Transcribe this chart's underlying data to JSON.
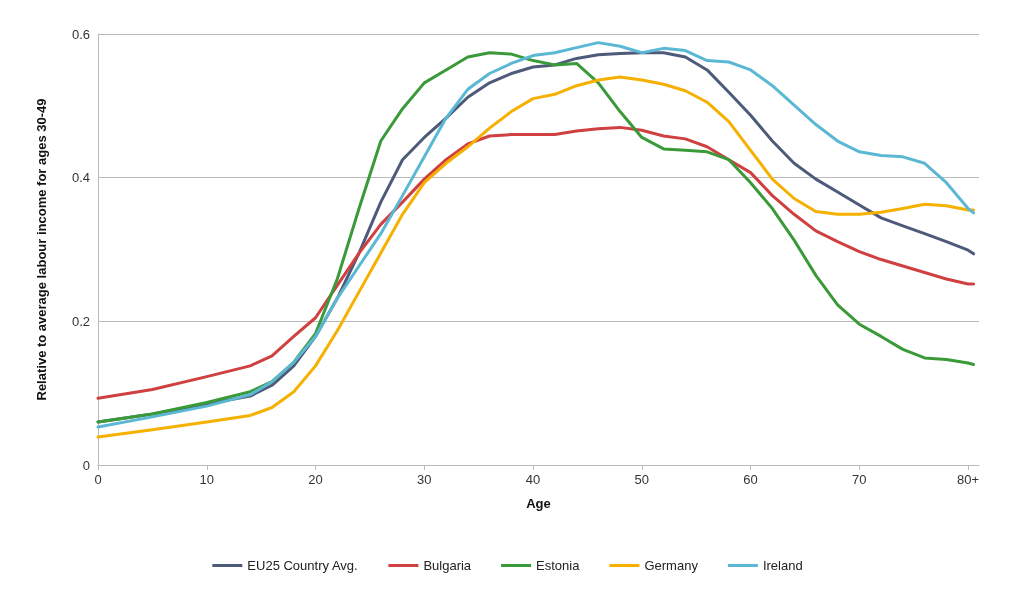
{
  "chart_data": {
    "type": "line",
    "xlabel": "Age",
    "ylabel": "Relative to average labour income for ages 30-49",
    "x": [
      0,
      5,
      10,
      14,
      16,
      18,
      20,
      22,
      24,
      26,
      28,
      30,
      32,
      34,
      36,
      38,
      40,
      42,
      44,
      46,
      48,
      50,
      52,
      54,
      56,
      58,
      60,
      62,
      64,
      66,
      68,
      70,
      72,
      74,
      76,
      78,
      80,
      80.5
    ],
    "series": [
      {
        "name": "EU25 Country Avg.",
        "color": "#4d5a7a",
        "values": [
          0.06,
          0.071,
          0.085,
          0.096,
          0.111,
          0.138,
          0.179,
          0.232,
          0.295,
          0.366,
          0.425,
          0.456,
          0.483,
          0.512,
          0.532,
          0.545,
          0.554,
          0.557,
          0.566,
          0.571,
          0.573,
          0.574,
          0.574,
          0.568,
          0.55,
          0.519,
          0.487,
          0.451,
          0.42,
          0.398,
          0.38,
          0.362,
          0.344,
          0.333,
          0.322,
          0.311,
          0.299,
          0.294
        ]
      },
      {
        "name": "Bulgaria",
        "color": "#d04040",
        "values": [
          0.093,
          0.105,
          0.123,
          0.138,
          0.152,
          0.179,
          0.205,
          0.25,
          0.295,
          0.335,
          0.366,
          0.398,
          0.425,
          0.447,
          0.458,
          0.46,
          0.46,
          0.46,
          0.465,
          0.468,
          0.47,
          0.466,
          0.458,
          0.454,
          0.443,
          0.425,
          0.407,
          0.375,
          0.349,
          0.326,
          0.311,
          0.297,
          0.286,
          0.277,
          0.268,
          0.259,
          0.252,
          0.252
        ]
      },
      {
        "name": "Estonia",
        "color": "#3a9a3a",
        "values": [
          0.06,
          0.071,
          0.087,
          0.102,
          0.116,
          0.143,
          0.183,
          0.259,
          0.357,
          0.451,
          0.496,
          0.532,
          0.55,
          0.568,
          0.574,
          0.572,
          0.563,
          0.557,
          0.559,
          0.532,
          0.492,
          0.456,
          0.44,
          0.438,
          0.436,
          0.425,
          0.393,
          0.357,
          0.313,
          0.264,
          0.223,
          0.196,
          0.179,
          0.161,
          0.149,
          0.147,
          0.142,
          0.14
        ]
      },
      {
        "name": "Germany",
        "color": "#f5b000",
        "values": [
          0.039,
          0.049,
          0.06,
          0.069,
          0.08,
          0.102,
          0.138,
          0.187,
          0.241,
          0.295,
          0.349,
          0.393,
          0.42,
          0.443,
          0.469,
          0.492,
          0.51,
          0.516,
          0.528,
          0.536,
          0.54,
          0.536,
          0.53,
          0.521,
          0.505,
          0.478,
          0.438,
          0.398,
          0.371,
          0.353,
          0.349,
          0.349,
          0.352,
          0.357,
          0.363,
          0.361,
          0.355,
          0.355
        ]
      },
      {
        "name": "Ireland",
        "color": "#5bb8d4",
        "values": [
          0.053,
          0.067,
          0.082,
          0.098,
          0.116,
          0.143,
          0.179,
          0.232,
          0.277,
          0.322,
          0.375,
          0.429,
          0.483,
          0.523,
          0.545,
          0.559,
          0.57,
          0.574,
          0.581,
          0.588,
          0.583,
          0.574,
          0.58,
          0.577,
          0.563,
          0.561,
          0.55,
          0.528,
          0.501,
          0.474,
          0.451,
          0.436,
          0.431,
          0.429,
          0.42,
          0.393,
          0.357,
          0.351
        ]
      }
    ],
    "xlim": [
      0,
      81
    ],
    "xticks": [
      0,
      10,
      20,
      30,
      40,
      50,
      60,
      70,
      {
        "value": 80,
        "label": "80+"
      }
    ],
    "ylim": [
      0,
      0.6
    ],
    "yticks": [
      0,
      0.2,
      0.4,
      0.6
    ],
    "grid": "y",
    "legend": "bottom",
    "marker": "none",
    "line_style": "solid"
  }
}
